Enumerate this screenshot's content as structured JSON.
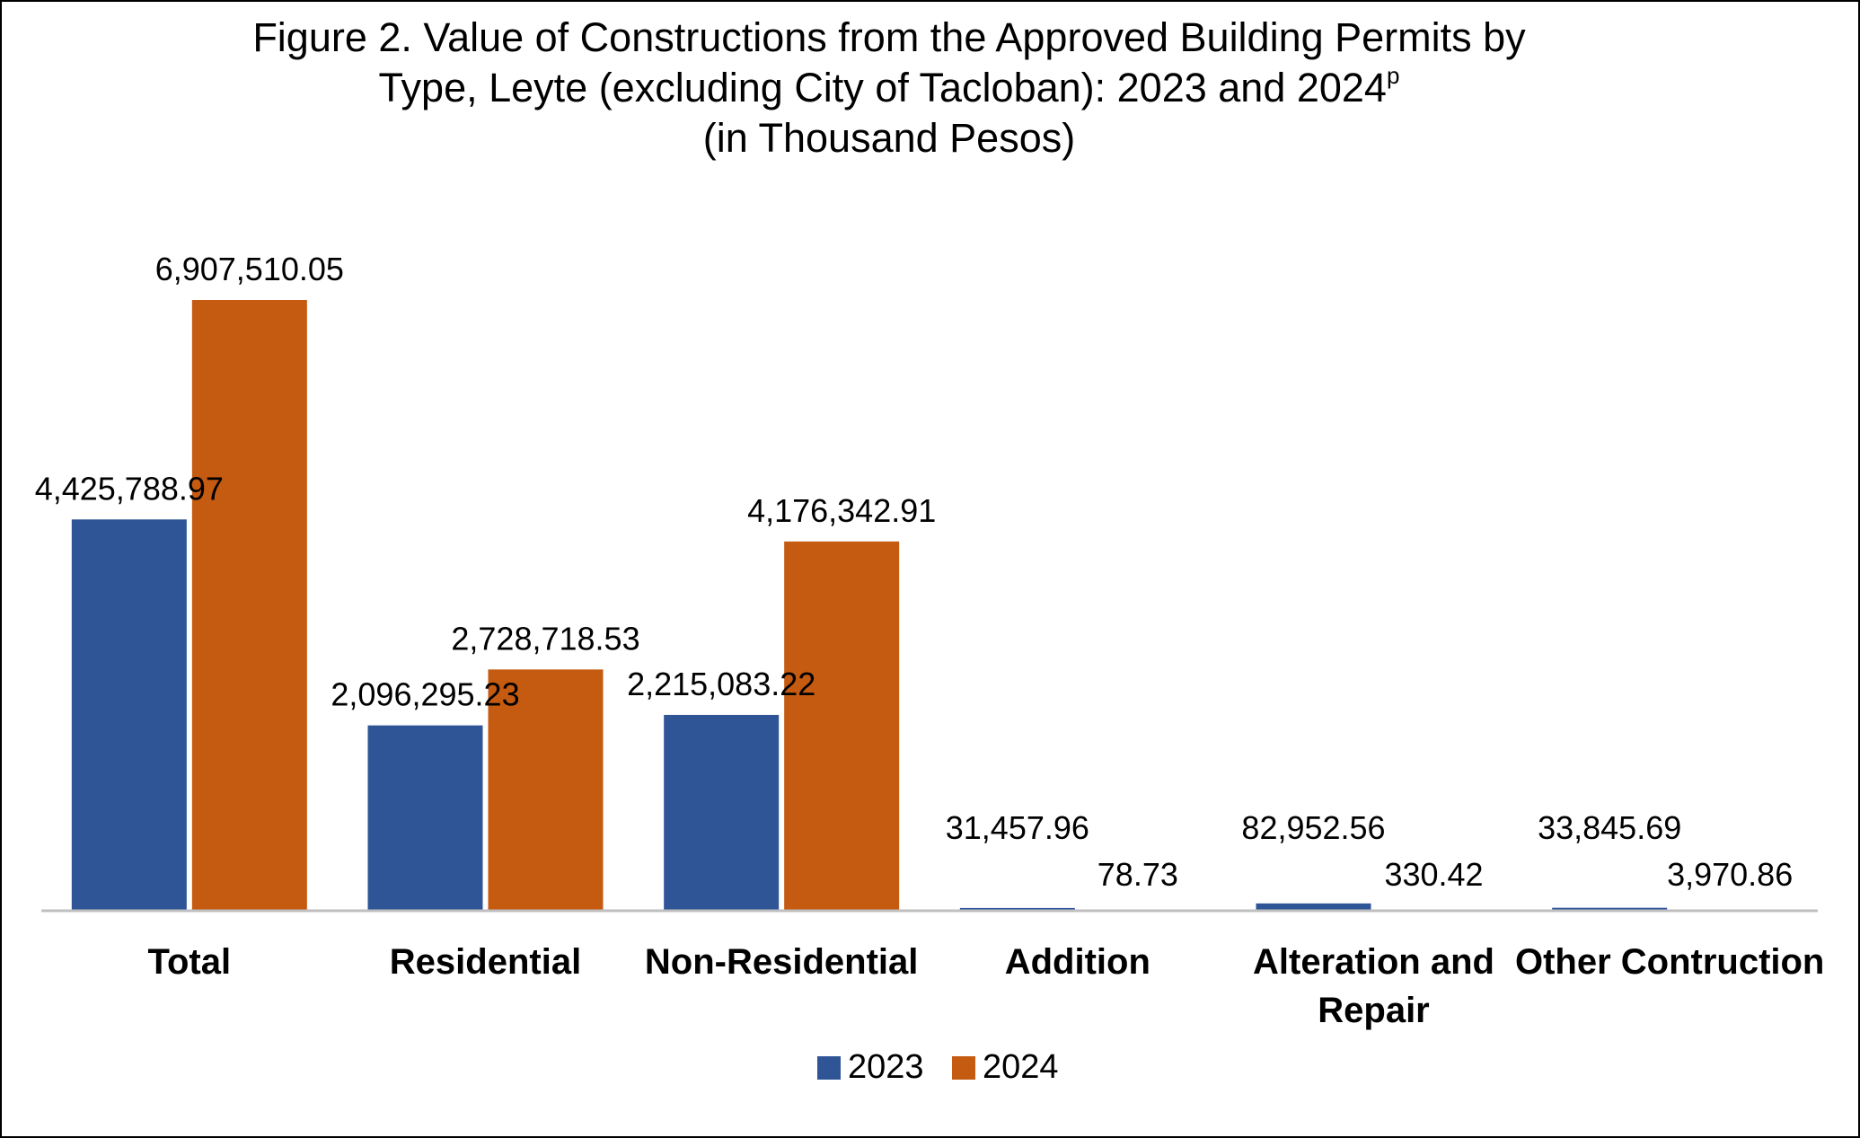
{
  "title": {
    "line1": "Figure 2. Value of Constructions from the Approved Building Permits by",
    "line2": "Type, Leyte (excluding City of Tacloban): 2023 and 2024",
    "line2_sup": "p",
    "line3": "(in Thousand Pesos)"
  },
  "chart_data": {
    "type": "bar",
    "title": "Figure 2. Value of Constructions from the Approved Building Permits by Type, Leyte (excluding City of Tacloban): 2023 and 2024p (in Thousand Pesos)",
    "categories": [
      [
        "Total"
      ],
      [
        "Residential"
      ],
      [
        "Non-Residential"
      ],
      [
        "Addition"
      ],
      [
        "Alteration and",
        "Repair"
      ],
      [
        "Other Contruction"
      ]
    ],
    "series": [
      {
        "name": "2023",
        "color": "#2F5597",
        "values": [
          4425788.97,
          2096295.23,
          2215083.22,
          31457.96,
          82952.56,
          33845.69
        ],
        "labels": [
          "4,425,788.97",
          "2,096,295.23",
          "2,215,083.22",
          "31,457.96",
          "82,952.56",
          "33,845.69"
        ]
      },
      {
        "name": "2024",
        "color": "#C55A11",
        "values": [
          6907510.05,
          2728718.53,
          4176342.91,
          78.73,
          330.42,
          3970.86
        ],
        "labels": [
          "6,907,510.05",
          "2,728,718.53",
          "4,176,342.91",
          "78.73",
          "330.42",
          "3,970.86"
        ]
      }
    ],
    "xlabel": "",
    "ylabel": "",
    "ylim": [
      0,
      6907510.05
    ],
    "grid": false,
    "legend": "bottom-center"
  }
}
